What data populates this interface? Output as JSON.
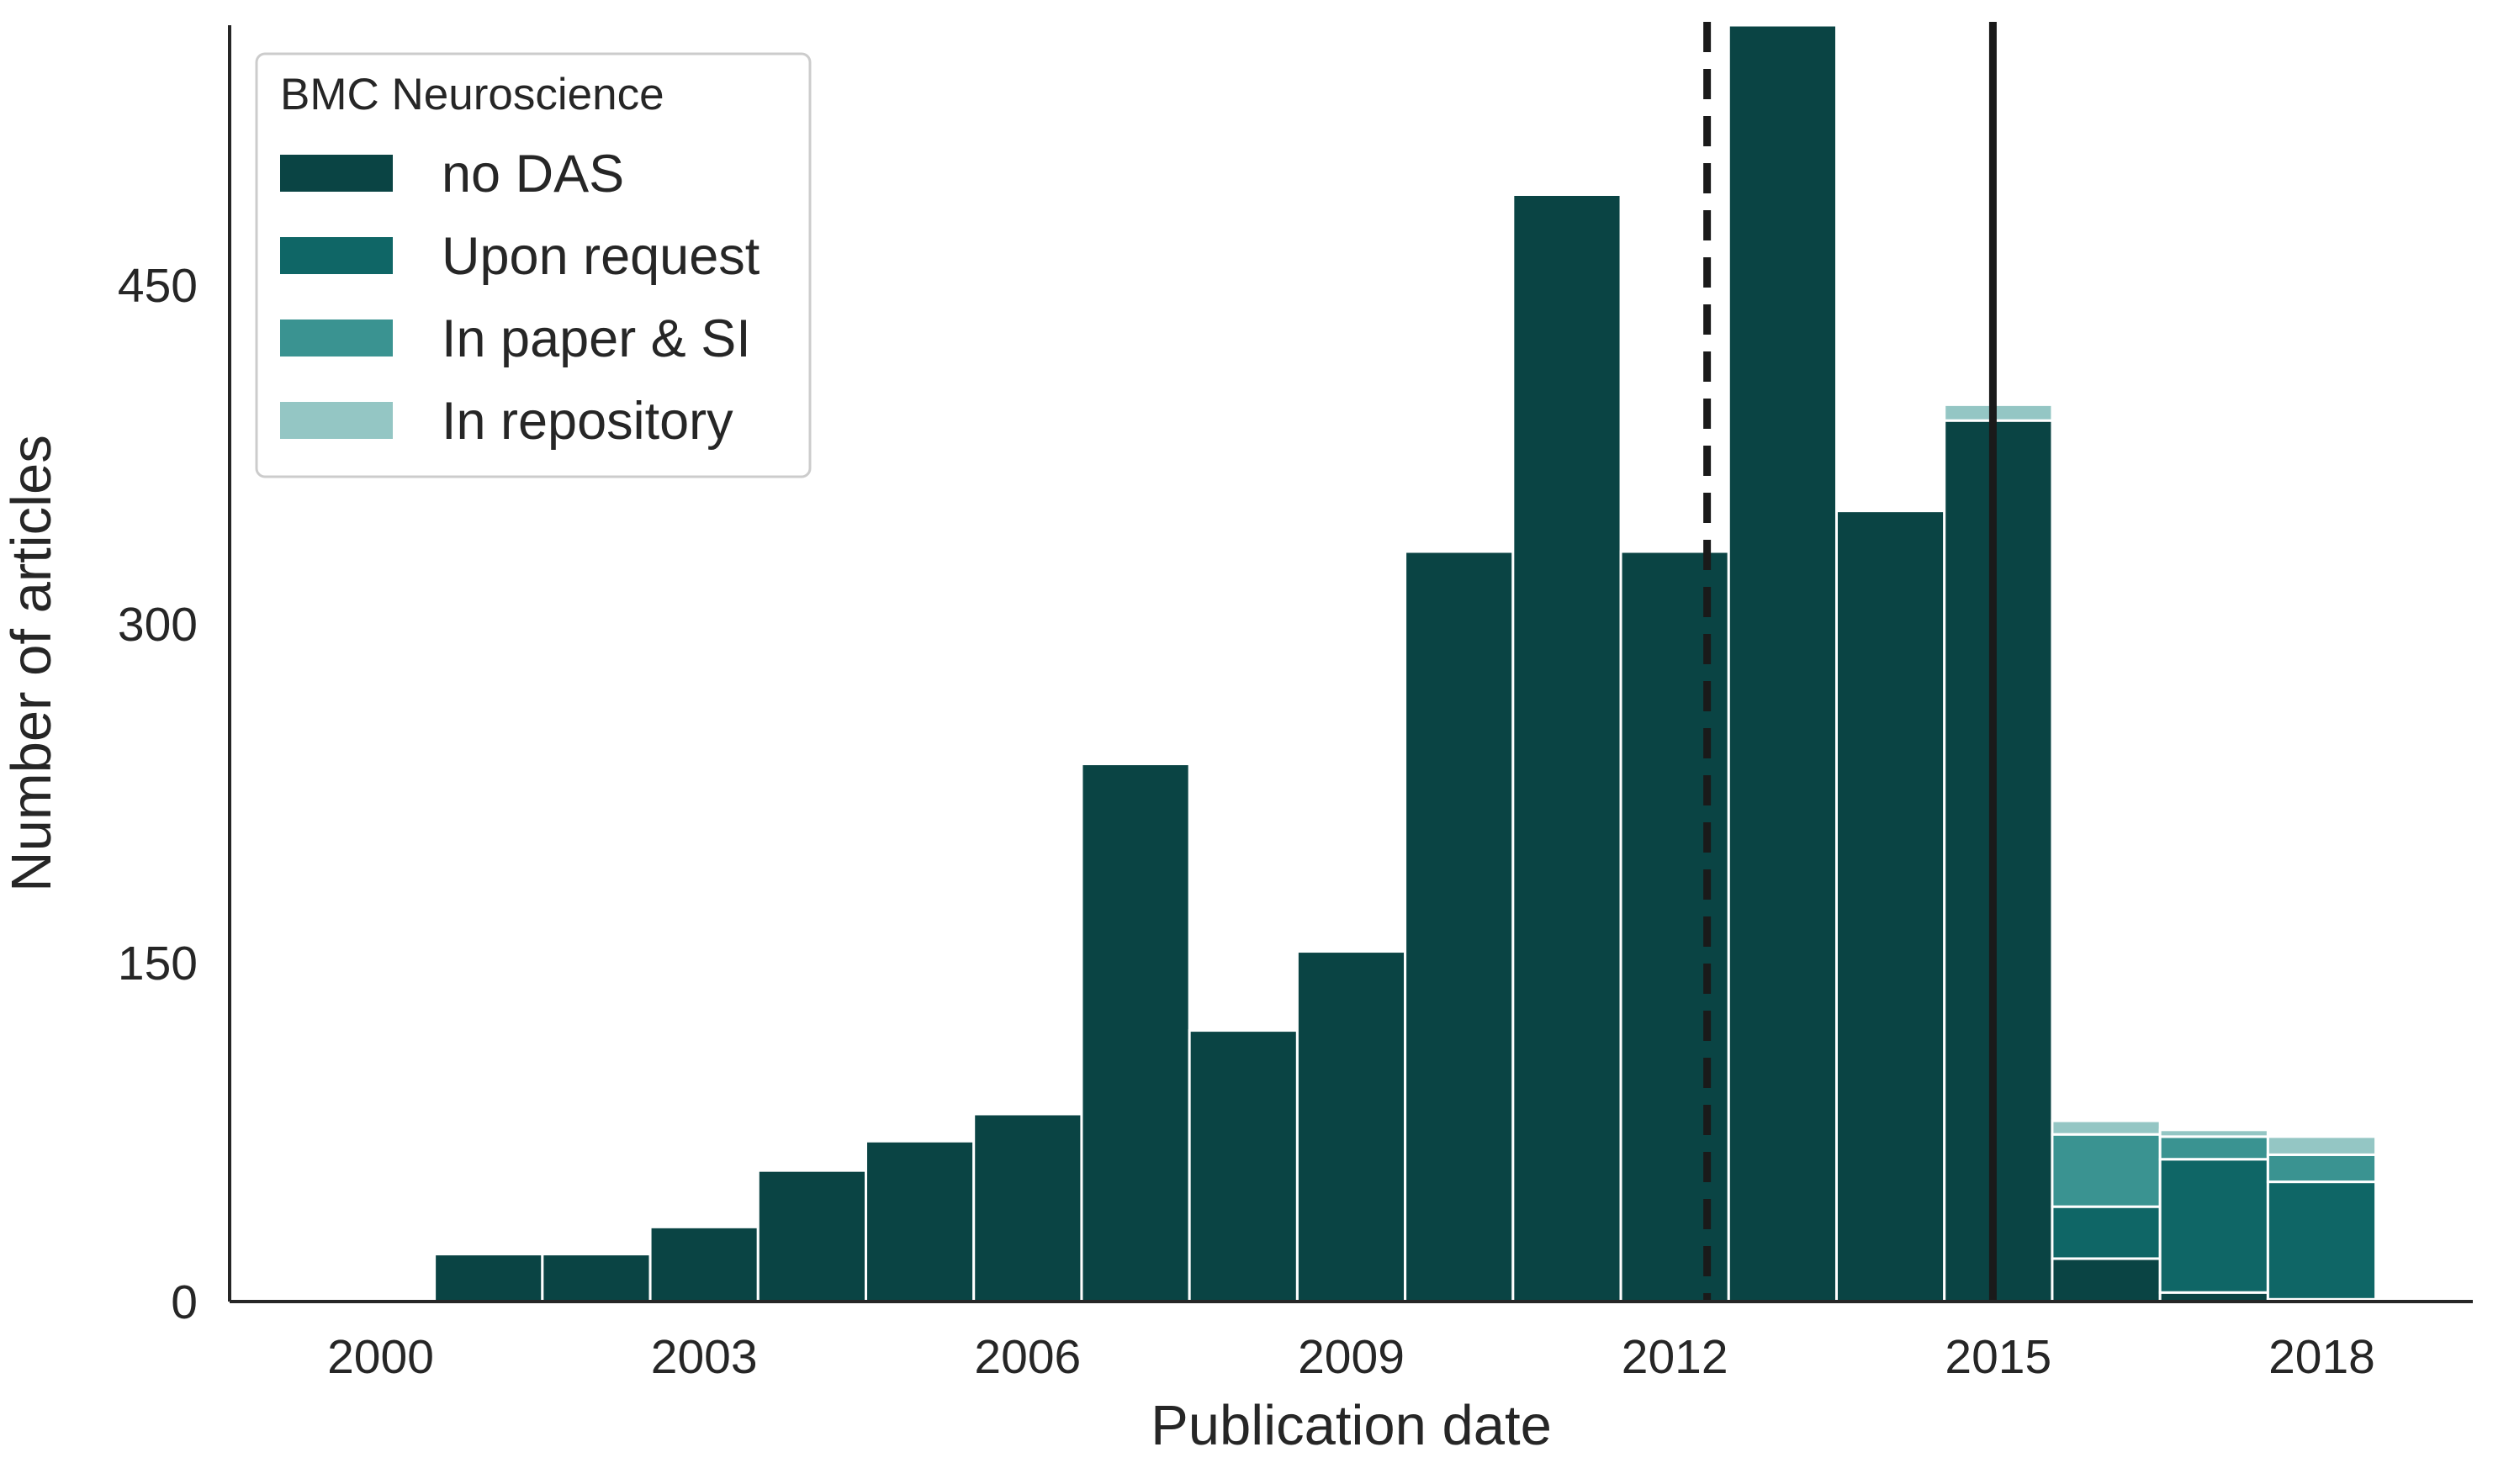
{
  "chart_data": {
    "type": "bar",
    "stacked": true,
    "xlabel": "Publication date",
    "ylabel": "Number of articles",
    "x_tick_labels": [
      "2000",
      "2003",
      "2006",
      "2009",
      "2012",
      "2015",
      "2018"
    ],
    "y_tick_labels": [
      "0",
      "150",
      "300",
      "450"
    ],
    "ylim": [
      0,
      565
    ],
    "xlim": [
      1998.6,
      2019.4
    ],
    "bin_width_years": 1,
    "grid": false,
    "legend": {
      "title": "BMC Neuroscience",
      "placement": "top-left"
    },
    "series_colors": {
      "no DAS": "#0a4444",
      "Upon request": "#0f6666",
      "In paper & SI": "#3a9391",
      "In repository": "#94c6c4"
    },
    "bins": [
      "2000",
      "2001",
      "2002",
      "2003",
      "2004",
      "2005",
      "2006",
      "2007",
      "2008",
      "2009",
      "2010",
      "2011",
      "2012",
      "2013",
      "2014",
      "2015",
      "2016",
      "2017",
      "2018"
    ],
    "series": [
      {
        "name": "no DAS",
        "values": [
          0,
          21,
          21,
          33,
          58,
          71,
          83,
          238,
          120,
          155,
          332,
          490,
          332,
          565,
          350,
          390,
          19,
          4,
          1
        ]
      },
      {
        "name": "Upon request",
        "values": [
          0,
          0,
          0,
          0,
          0,
          0,
          0,
          0,
          0,
          0,
          0,
          0,
          0,
          0,
          0,
          0,
          23,
          59,
          52
        ]
      },
      {
        "name": "In paper & SI",
        "values": [
          0,
          0,
          0,
          0,
          0,
          0,
          0,
          0,
          0,
          0,
          0,
          0,
          0,
          0,
          0,
          0,
          32,
          10,
          12
        ]
      },
      {
        "name": "In repository",
        "values": [
          0,
          0,
          0,
          0,
          0,
          0,
          0,
          0,
          0,
          0,
          0,
          0,
          0,
          0,
          0,
          7,
          6,
          3,
          8
        ]
      }
    ],
    "reference_lines": [
      {
        "x": 2012.3,
        "style": "dashed"
      },
      {
        "x": 2014.95,
        "style": "solid"
      }
    ]
  }
}
